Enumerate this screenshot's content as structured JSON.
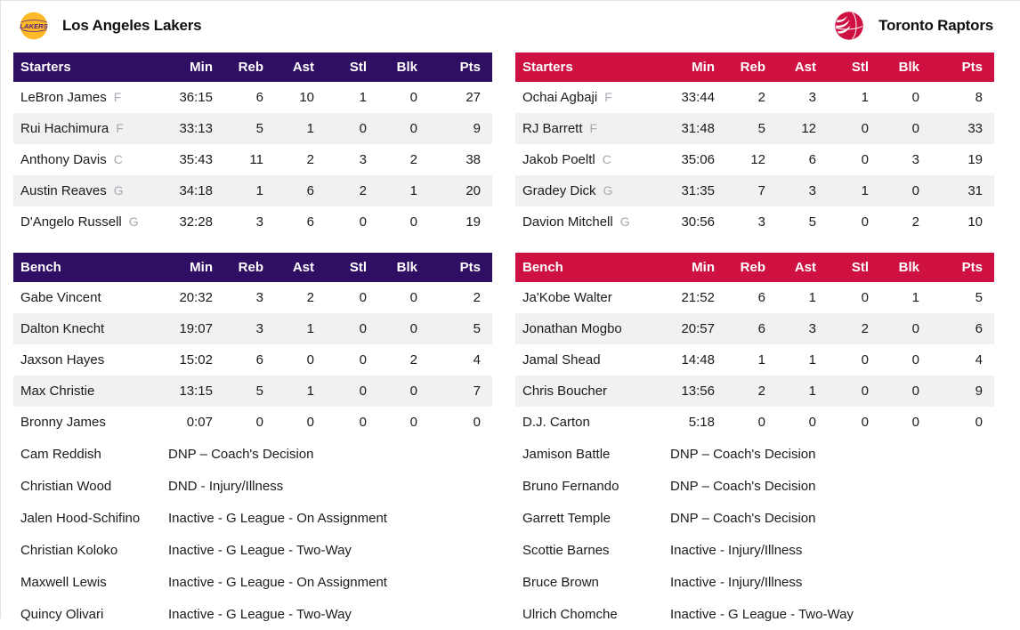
{
  "header": {
    "left_team": "Los Angeles Lakers",
    "right_team": "Toronto Raptors",
    "left_logo": "lakers-basketball-logo",
    "right_logo": "raptors-claw-basketball-logo"
  },
  "sections": {
    "starters": "Starters",
    "bench": "Bench"
  },
  "columns": [
    "Min",
    "Reb",
    "Ast",
    "Stl",
    "Blk",
    "Pts"
  ],
  "colors": {
    "lakers_accent": "#2f0f63",
    "raptors_accent": "#ce1141",
    "lakers_gold": "#fdb927",
    "lakers_purple": "#552583",
    "stripe": "#f1f1f2"
  },
  "teams": [
    {
      "name": "Los Angeles Lakers",
      "accent": "#2f0f63",
      "starters": [
        {
          "name": "LeBron James",
          "pos": "F",
          "min": "36:15",
          "reb": "6",
          "ast": "10",
          "stl": "1",
          "blk": "0",
          "pts": "27"
        },
        {
          "name": "Rui Hachimura",
          "pos": "F",
          "min": "33:13",
          "reb": "5",
          "ast": "1",
          "stl": "0",
          "blk": "0",
          "pts": "9"
        },
        {
          "name": "Anthony Davis",
          "pos": "C",
          "min": "35:43",
          "reb": "11",
          "ast": "2",
          "stl": "3",
          "blk": "2",
          "pts": "38"
        },
        {
          "name": "Austin Reaves",
          "pos": "G",
          "min": "34:18",
          "reb": "1",
          "ast": "6",
          "stl": "2",
          "blk": "1",
          "pts": "20"
        },
        {
          "name": "D'Angelo Russell",
          "pos": "G",
          "min": "32:28",
          "reb": "3",
          "ast": "6",
          "stl": "0",
          "blk": "0",
          "pts": "19"
        }
      ],
      "bench": [
        {
          "name": "Gabe Vincent",
          "pos": "",
          "min": "20:32",
          "reb": "3",
          "ast": "2",
          "stl": "0",
          "blk": "0",
          "pts": "2"
        },
        {
          "name": "Dalton Knecht",
          "pos": "",
          "min": "19:07",
          "reb": "3",
          "ast": "1",
          "stl": "0",
          "blk": "0",
          "pts": "5"
        },
        {
          "name": "Jaxson Hayes",
          "pos": "",
          "min": "15:02",
          "reb": "6",
          "ast": "0",
          "stl": "0",
          "blk": "2",
          "pts": "4"
        },
        {
          "name": "Max Christie",
          "pos": "",
          "min": "13:15",
          "reb": "5",
          "ast": "1",
          "stl": "0",
          "blk": "0",
          "pts": "7"
        },
        {
          "name": "Bronny James",
          "pos": "",
          "min": "0:07",
          "reb": "0",
          "ast": "0",
          "stl": "0",
          "blk": "0",
          "pts": "0"
        }
      ],
      "notes": [
        {
          "name": "Cam Reddish",
          "note": "DNP – Coach's Decision"
        },
        {
          "name": "Christian Wood",
          "note": "DND - Injury/Illness"
        },
        {
          "name": "Jalen Hood-Schifino",
          "note": "Inactive - G League - On Assignment"
        },
        {
          "name": "Christian Koloko",
          "note": "Inactive - G League - Two-Way"
        },
        {
          "name": "Maxwell Lewis",
          "note": "Inactive - G League - On Assignment"
        },
        {
          "name": "Quincy Olivari",
          "note": "Inactive - G League - Two-Way"
        }
      ]
    },
    {
      "name": "Toronto Raptors",
      "accent": "#ce1141",
      "starters": [
        {
          "name": "Ochai Agbaji",
          "pos": "F",
          "min": "33:44",
          "reb": "2",
          "ast": "3",
          "stl": "1",
          "blk": "0",
          "pts": "8"
        },
        {
          "name": "RJ Barrett",
          "pos": "F",
          "min": "31:48",
          "reb": "5",
          "ast": "12",
          "stl": "0",
          "blk": "0",
          "pts": "33"
        },
        {
          "name": "Jakob Poeltl",
          "pos": "C",
          "min": "35:06",
          "reb": "12",
          "ast": "6",
          "stl": "0",
          "blk": "3",
          "pts": "19"
        },
        {
          "name": "Gradey Dick",
          "pos": "G",
          "min": "31:35",
          "reb": "7",
          "ast": "3",
          "stl": "1",
          "blk": "0",
          "pts": "31"
        },
        {
          "name": "Davion Mitchell",
          "pos": "G",
          "min": "30:56",
          "reb": "3",
          "ast": "5",
          "stl": "0",
          "blk": "2",
          "pts": "10"
        }
      ],
      "bench": [
        {
          "name": "Ja'Kobe Walter",
          "pos": "",
          "min": "21:52",
          "reb": "6",
          "ast": "1",
          "stl": "0",
          "blk": "1",
          "pts": "5"
        },
        {
          "name": "Jonathan Mogbo",
          "pos": "",
          "min": "20:57",
          "reb": "6",
          "ast": "3",
          "stl": "2",
          "blk": "0",
          "pts": "6"
        },
        {
          "name": "Jamal Shead",
          "pos": "",
          "min": "14:48",
          "reb": "1",
          "ast": "1",
          "stl": "0",
          "blk": "0",
          "pts": "4"
        },
        {
          "name": "Chris Boucher",
          "pos": "",
          "min": "13:56",
          "reb": "2",
          "ast": "1",
          "stl": "0",
          "blk": "0",
          "pts": "9"
        },
        {
          "name": "D.J. Carton",
          "pos": "",
          "min": "5:18",
          "reb": "0",
          "ast": "0",
          "stl": "0",
          "blk": "0",
          "pts": "0"
        }
      ],
      "notes": [
        {
          "name": "Jamison Battle",
          "note": "DNP – Coach's Decision"
        },
        {
          "name": "Bruno Fernando",
          "note": "DNP – Coach's Decision"
        },
        {
          "name": "Garrett Temple",
          "note": "DNP – Coach's Decision"
        },
        {
          "name": "Scottie Barnes",
          "note": "Inactive - Injury/Illness"
        },
        {
          "name": "Bruce Brown",
          "note": "Inactive - Injury/Illness"
        },
        {
          "name": "Ulrich Chomche",
          "note": "Inactive - G League - Two-Way"
        }
      ]
    }
  ]
}
